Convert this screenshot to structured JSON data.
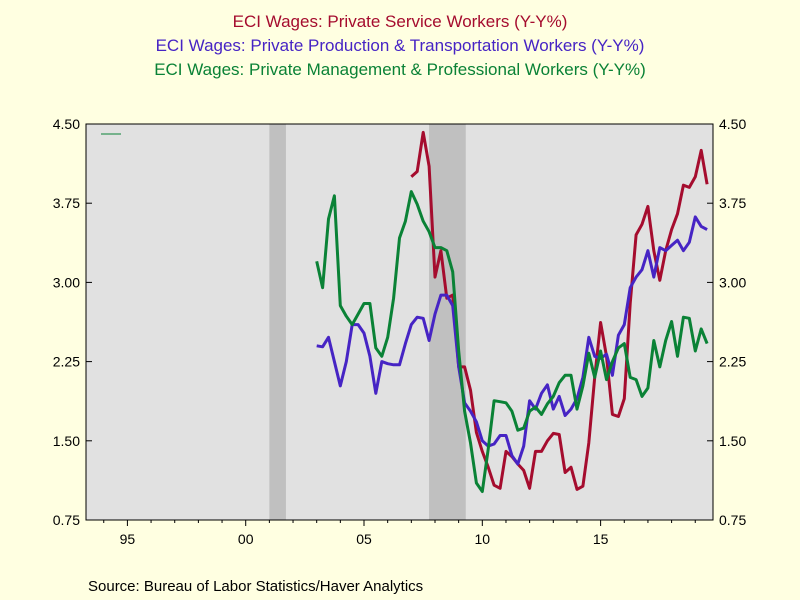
{
  "chart_data": {
    "type": "line",
    "titles": [
      "ECI Wages: Private Service Workers (Y-Y%)",
      "ECI Wages: Private Production & Transportation Workers (Y-Y%)",
      "ECI Wages: Private Management & Professional Workers (Y-Y%)"
    ],
    "ylim": [
      0.75,
      4.5
    ],
    "yticks": [
      0.75,
      1.5,
      2.25,
      3.0,
      3.75,
      4.5
    ],
    "ytick_labels": [
      "0.75",
      "1.50",
      "2.25",
      "3.00",
      "3.75",
      "4.50"
    ],
    "xlim": [
      1993.25,
      2019.75
    ],
    "xticks": [
      1995,
      2000,
      2005,
      2010,
      2015
    ],
    "xtick_labels": [
      "95",
      "00",
      "05",
      "10",
      "15"
    ],
    "recessions": [
      [
        2001.0,
        2001.7
      ],
      [
        2007.75,
        2009.3
      ]
    ],
    "grid": false,
    "series": [
      {
        "name": "ECI Wages: Private Service Workers (Y-Y%)",
        "color": "#a50c2e",
        "x": [
          2007.0,
          2007.25,
          2007.5,
          2007.75,
          2008.0,
          2008.25,
          2008.5,
          2008.75,
          2009.0,
          2009.25,
          2009.5,
          2009.75,
          2010.0,
          2010.25,
          2010.5,
          2010.75,
          2011.0,
          2011.25,
          2011.5,
          2011.75,
          2012.0,
          2012.25,
          2012.5,
          2012.75,
          2013.0,
          2013.25,
          2013.5,
          2013.75,
          2014.0,
          2014.25,
          2014.5,
          2014.75,
          2015.0,
          2015.25,
          2015.5,
          2015.75,
          2016.0,
          2016.25,
          2016.5,
          2016.75,
          2017.0,
          2017.25,
          2017.5,
          2017.75,
          2018.0,
          2018.25,
          2018.5,
          2018.75,
          2019.0,
          2019.25,
          2019.5
        ],
        "values": [
          4.0,
          4.05,
          4.42,
          4.1,
          3.05,
          3.3,
          2.85,
          2.88,
          2.2,
          2.2,
          1.98,
          1.58,
          1.4,
          1.25,
          1.08,
          1.05,
          1.4,
          1.35,
          1.28,
          1.22,
          1.05,
          1.4,
          1.4,
          1.5,
          1.57,
          1.56,
          1.2,
          1.25,
          1.04,
          1.07,
          1.48,
          2.1,
          2.62,
          2.3,
          1.75,
          1.73,
          1.9,
          2.8,
          3.45,
          3.55,
          3.72,
          3.3,
          3.02,
          3.3,
          3.5,
          3.65,
          3.92,
          3.9,
          4.0,
          4.25,
          3.93
        ]
      },
      {
        "name": "ECI Wages: Private Production & Transportation Workers (Y-Y%)",
        "color": "#4624c4",
        "x": [
          2003.0,
          2003.25,
          2003.5,
          2003.75,
          2004.0,
          2004.25,
          2004.5,
          2004.75,
          2005.0,
          2005.25,
          2005.5,
          2005.75,
          2006.0,
          2006.25,
          2006.5,
          2006.75,
          2007.0,
          2007.25,
          2007.5,
          2007.75,
          2008.0,
          2008.25,
          2008.5,
          2008.75,
          2009.0,
          2009.25,
          2009.5,
          2009.75,
          2010.0,
          2010.25,
          2010.5,
          2010.75,
          2011.0,
          2011.25,
          2011.5,
          2011.75,
          2012.0,
          2012.25,
          2012.5,
          2012.75,
          2013.0,
          2013.25,
          2013.5,
          2013.75,
          2014.0,
          2014.25,
          2014.5,
          2014.75,
          2015.0,
          2015.25,
          2015.5,
          2015.75,
          2016.0,
          2016.25,
          2016.5,
          2016.75,
          2017.0,
          2017.25,
          2017.5,
          2017.75,
          2018.0,
          2018.25,
          2018.5,
          2018.75,
          2019.0,
          2019.25,
          2019.5
        ],
        "values": [
          2.4,
          2.39,
          2.48,
          2.25,
          2.02,
          2.25,
          2.6,
          2.6,
          2.52,
          2.3,
          1.95,
          2.25,
          2.23,
          2.22,
          2.22,
          2.42,
          2.6,
          2.67,
          2.66,
          2.45,
          2.7,
          2.88,
          2.88,
          2.78,
          2.2,
          1.86,
          1.78,
          1.68,
          1.5,
          1.45,
          1.47,
          1.55,
          1.55,
          1.36,
          1.28,
          1.45,
          1.88,
          1.8,
          1.95,
          2.03,
          1.8,
          1.92,
          1.74,
          1.8,
          1.9,
          2.1,
          2.48,
          2.3,
          2.28,
          2.32,
          2.12,
          2.5,
          2.6,
          2.95,
          3.05,
          3.12,
          3.3,
          3.05,
          3.33,
          3.3,
          3.35,
          3.4,
          3.3,
          3.38,
          3.62,
          3.53,
          3.5
        ]
      },
      {
        "name": "ECI Wages: Private Management & Professional Workers (Y-Y%)",
        "color": "#0a8236",
        "x": [
          2003.0,
          2003.25,
          2003.5,
          2003.75,
          2004.0,
          2004.25,
          2004.5,
          2004.75,
          2005.0,
          2005.25,
          2005.5,
          2005.75,
          2006.0,
          2006.25,
          2006.5,
          2006.75,
          2007.0,
          2007.25,
          2007.5,
          2007.75,
          2008.0,
          2008.25,
          2008.5,
          2008.75,
          2009.0,
          2009.25,
          2009.5,
          2009.75,
          2010.0,
          2010.25,
          2010.5,
          2010.75,
          2011.0,
          2011.25,
          2011.5,
          2011.75,
          2012.0,
          2012.25,
          2012.5,
          2012.75,
          2013.0,
          2013.25,
          2013.5,
          2013.75,
          2014.0,
          2014.25,
          2014.5,
          2014.75,
          2015.0,
          2015.25,
          2015.5,
          2015.75,
          2016.0,
          2016.25,
          2016.5,
          2016.75,
          2017.0,
          2017.25,
          2017.5,
          2017.75,
          2018.0,
          2018.25,
          2018.5,
          2018.75,
          2019.0,
          2019.25,
          2019.5
        ],
        "values": [
          3.2,
          2.95,
          3.6,
          3.82,
          2.78,
          2.68,
          2.6,
          2.7,
          2.8,
          2.8,
          2.38,
          2.3,
          2.48,
          2.85,
          3.42,
          3.58,
          3.86,
          3.74,
          3.58,
          3.48,
          3.33,
          3.33,
          3.3,
          3.1,
          2.35,
          1.78,
          1.48,
          1.1,
          1.02,
          1.42,
          1.88,
          1.87,
          1.86,
          1.78,
          1.6,
          1.62,
          1.78,
          1.82,
          1.75,
          1.85,
          1.92,
          2.05,
          2.12,
          2.12,
          1.8,
          2.02,
          2.33,
          2.1,
          2.35,
          2.08,
          2.25,
          2.38,
          2.42,
          2.1,
          2.08,
          1.92,
          2.0,
          2.45,
          2.2,
          2.45,
          2.63,
          2.3,
          2.67,
          2.66,
          2.35,
          2.56,
          2.42
        ]
      }
    ]
  },
  "source": "Source:  Bureau of Labor Statistics/Haver Analytics"
}
